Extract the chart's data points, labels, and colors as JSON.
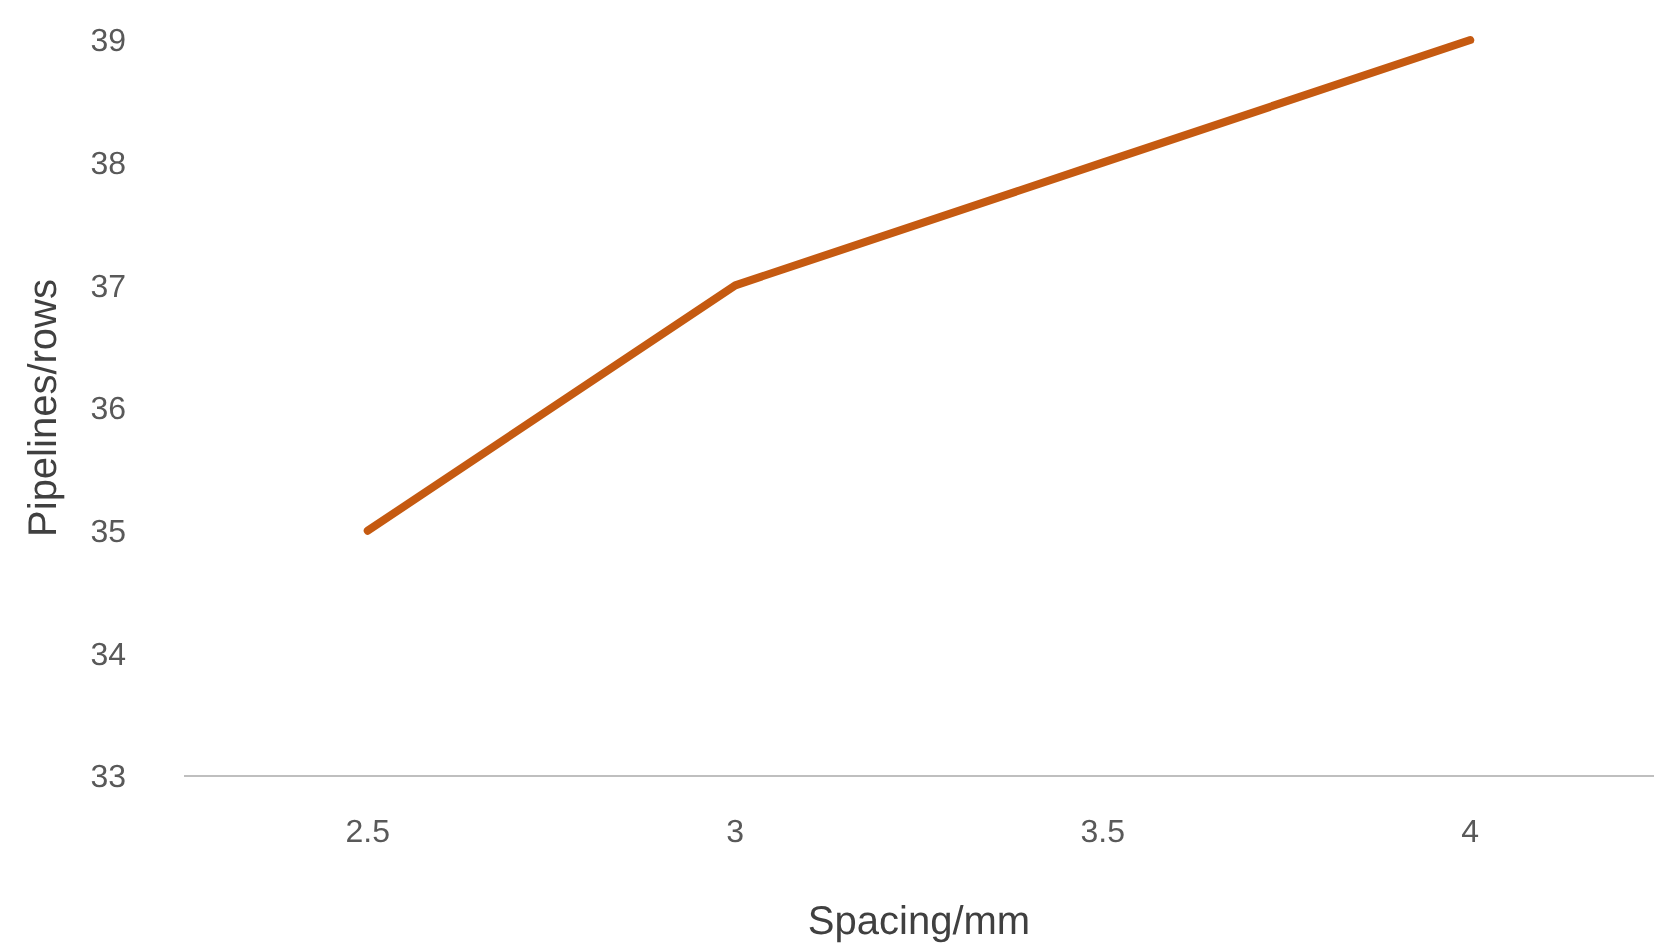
{
  "chart_data": {
    "type": "line",
    "xlabel": "Spacing/mm",
    "ylabel": "Pipelines/rows",
    "categories": [
      "2.5",
      "3",
      "3.5",
      "4"
    ],
    "series": [
      {
        "color": "#c55a11",
        "values": [
          35,
          37,
          38,
          39
        ]
      }
    ],
    "ylim": [
      33,
      39
    ],
    "yticks": [
      33,
      34,
      35,
      36,
      37,
      38,
      39
    ],
    "grid": false,
    "marker": "none",
    "line_style": "solid"
  }
}
